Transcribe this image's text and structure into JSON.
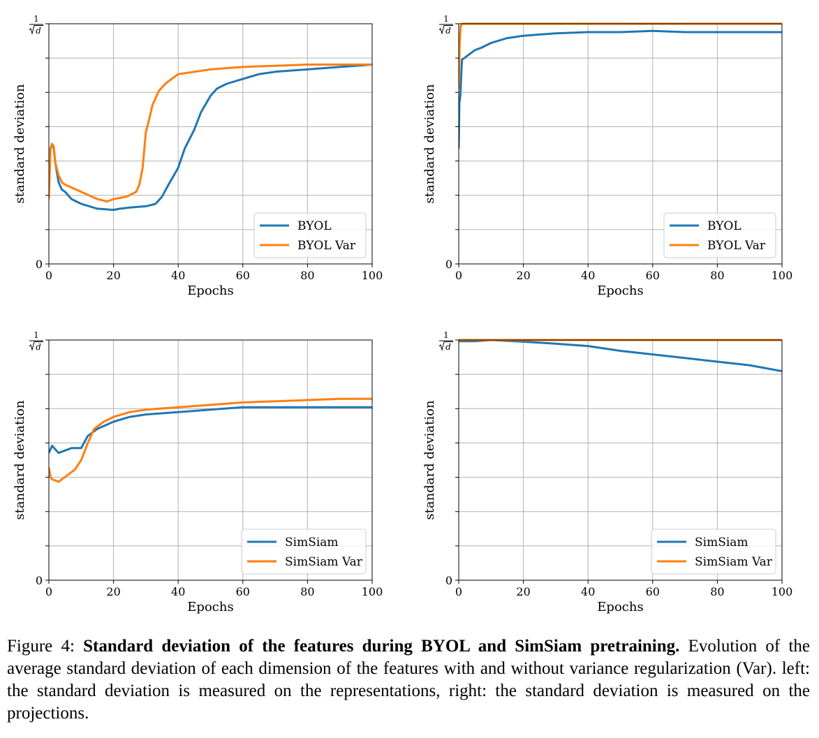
{
  "figure": {
    "caption": {
      "label": "Figure 4:",
      "title": "Standard deviation of the features during BYOL and SimSiam pretraining.",
      "text": "Evolution of the average standard deviation of each dimension of the features with and without variance regularization (Var). left: the standard deviation is measured on the representations, right: the standard deviation is measured on the projections."
    }
  },
  "colors": {
    "blue": "#1f77b4",
    "orange": "#ff7f0e",
    "grid": "#b0b0b0"
  },
  "chart_data": [
    {
      "type": "line",
      "xlabel": "Epochs",
      "ylabel": "standard deviation",
      "xlim": [
        0,
        100
      ],
      "ylim": [
        0,
        1
      ],
      "x_ticks": [
        0,
        20,
        40,
        60,
        80,
        100
      ],
      "y_tick_labels": {
        "bottom": "0",
        "top_numerator": "1",
        "top_denominator": "d"
      },
      "grid": true,
      "legend_position": "lower right",
      "series": [
        {
          "name": "BYOL",
          "color": "#1f77b4",
          "x": [
            0,
            0.5,
            1,
            1.5,
            2,
            3,
            4,
            5,
            7,
            10,
            15,
            20,
            22,
            25,
            30,
            33,
            35,
            37,
            40,
            42,
            45,
            47,
            50,
            52,
            55,
            60,
            65,
            70,
            80,
            90,
            100
          ],
          "y": [
            0.3,
            0.48,
            0.5,
            0.48,
            0.42,
            0.34,
            0.31,
            0.3,
            0.27,
            0.25,
            0.23,
            0.225,
            0.23,
            0.235,
            0.24,
            0.25,
            0.28,
            0.33,
            0.4,
            0.48,
            0.56,
            0.63,
            0.7,
            0.73,
            0.75,
            0.77,
            0.79,
            0.8,
            0.81,
            0.82,
            0.83
          ]
        },
        {
          "name": "BYOL Var",
          "color": "#ff7f0e",
          "x": [
            0,
            0.5,
            1,
            1.5,
            2,
            3,
            4,
            5,
            10,
            15,
            18,
            20,
            24,
            27,
            28,
            29,
            30,
            31,
            32,
            34,
            36,
            38,
            40,
            45,
            50,
            60,
            70,
            80,
            90,
            100
          ],
          "y": [
            0.27,
            0.48,
            0.5,
            0.49,
            0.42,
            0.37,
            0.34,
            0.33,
            0.3,
            0.27,
            0.26,
            0.27,
            0.28,
            0.3,
            0.33,
            0.4,
            0.55,
            0.6,
            0.66,
            0.72,
            0.75,
            0.77,
            0.79,
            0.8,
            0.81,
            0.82,
            0.825,
            0.83,
            0.83,
            0.83
          ]
        }
      ]
    },
    {
      "type": "line",
      "xlabel": "Epochs",
      "ylabel": "standard deviation",
      "xlim": [
        0,
        100
      ],
      "ylim": [
        0,
        1
      ],
      "x_ticks": [
        0,
        20,
        40,
        60,
        80,
        100
      ],
      "y_tick_labels": {
        "bottom": "0",
        "top_numerator": "1",
        "top_denominator": "d"
      },
      "grid": true,
      "legend_position": "lower right",
      "series": [
        {
          "name": "BYOL",
          "color": "#1f77b4",
          "x": [
            0,
            0.2,
            0.5,
            1,
            2,
            3,
            5,
            7,
            10,
            15,
            20,
            30,
            40,
            50,
            60,
            70,
            80,
            90,
            100
          ],
          "y": [
            0.48,
            0.67,
            0.7,
            0.85,
            0.86,
            0.87,
            0.89,
            0.9,
            0.92,
            0.94,
            0.95,
            0.96,
            0.965,
            0.965,
            0.97,
            0.965,
            0.965,
            0.965,
            0.965
          ]
        },
        {
          "name": "BYOL Var",
          "color": "#ff7f0e",
          "x": [
            0,
            0.3,
            0.6,
            1,
            2,
            100
          ],
          "y": [
            0.73,
            0.92,
            0.99,
            1.0,
            1.0,
            1.0
          ]
        }
      ]
    },
    {
      "type": "line",
      "xlabel": "Epochs",
      "ylabel": "standard deviation",
      "xlim": [
        0,
        100
      ],
      "ylim": [
        0,
        1
      ],
      "x_ticks": [
        0,
        20,
        40,
        60,
        80,
        100
      ],
      "y_tick_labels": {
        "bottom": "0",
        "top_numerator": "1",
        "top_denominator": "d"
      },
      "grid": true,
      "legend_position": "lower right",
      "series": [
        {
          "name": "SimSiam",
          "color": "#1f77b4",
          "x": [
            0,
            1,
            3,
            5,
            7,
            10,
            12,
            15,
            20,
            25,
            30,
            40,
            50,
            60,
            70,
            80,
            90,
            100
          ],
          "y": [
            0.53,
            0.56,
            0.53,
            0.54,
            0.55,
            0.55,
            0.6,
            0.63,
            0.66,
            0.68,
            0.69,
            0.7,
            0.71,
            0.72,
            0.72,
            0.72,
            0.72,
            0.72
          ]
        },
        {
          "name": "SimSiam Var",
          "color": "#ff7f0e",
          "x": [
            0,
            0.5,
            1,
            3,
            5,
            8,
            10,
            12,
            14,
            17,
            20,
            25,
            30,
            40,
            50,
            60,
            70,
            80,
            90,
            100
          ],
          "y": [
            0.47,
            0.43,
            0.42,
            0.41,
            0.43,
            0.46,
            0.5,
            0.57,
            0.63,
            0.66,
            0.68,
            0.7,
            0.71,
            0.72,
            0.73,
            0.74,
            0.745,
            0.75,
            0.755,
            0.755
          ]
        }
      ]
    },
    {
      "type": "line",
      "xlabel": "Epochs",
      "ylabel": "standard deviation",
      "xlim": [
        0,
        100
      ],
      "ylim": [
        0,
        1
      ],
      "x_ticks": [
        0,
        20,
        40,
        60,
        80,
        100
      ],
      "y_tick_labels": {
        "bottom": "0",
        "top_numerator": "1",
        "top_denominator": "d"
      },
      "grid": true,
      "legend_position": "lower right",
      "series": [
        {
          "name": "SimSiam",
          "color": "#1f77b4",
          "x": [
            0,
            5,
            10,
            20,
            30,
            40,
            50,
            60,
            70,
            80,
            90,
            100
          ],
          "y": [
            0.995,
            0.995,
            1.0,
            0.993,
            0.985,
            0.975,
            0.955,
            0.94,
            0.925,
            0.91,
            0.895,
            0.87
          ]
        },
        {
          "name": "SimSiam Var",
          "color": "#ff7f0e",
          "x": [
            0,
            100
          ],
          "y": [
            1.0,
            1.0
          ]
        }
      ]
    }
  ]
}
